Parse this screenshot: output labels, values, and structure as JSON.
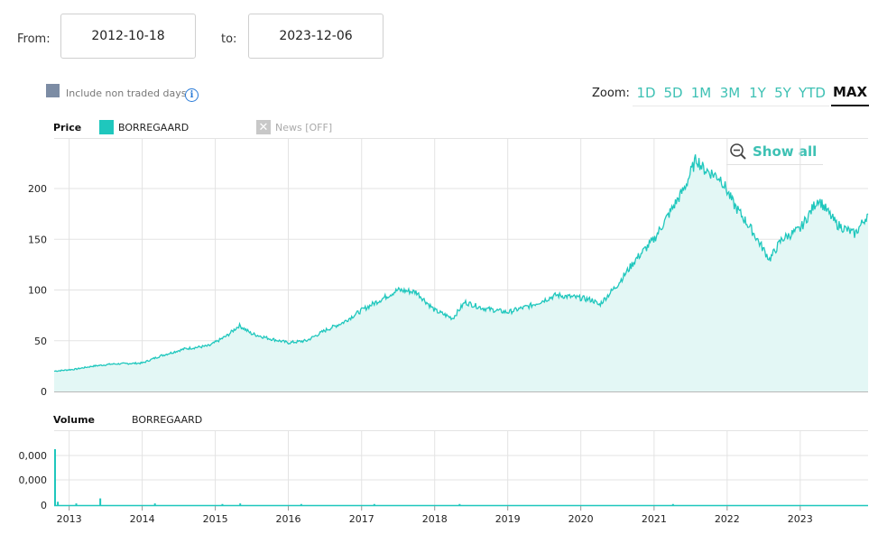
{
  "range": {
    "from_label": "From:",
    "from_value": "2012-10-18",
    "to_label": "to:",
    "to_value": "2023-12-06"
  },
  "options": {
    "include_non_traded_days": "Include non traded days"
  },
  "zoom": {
    "label": "Zoom:",
    "buttons": [
      "1D",
      "5D",
      "1M",
      "3M",
      "1Y",
      "5Y",
      "YTD",
      "MAX"
    ],
    "active": "MAX"
  },
  "price_legend": {
    "title": "Price",
    "series_name": "BORREGAARD",
    "news_label": "News [OFF]"
  },
  "show_all": "Show all",
  "volume_legend": {
    "title": "Volume",
    "series_name": "BORREGAARD"
  },
  "colors": {
    "series": "#1fc7bd",
    "fill": "#e3f7f5",
    "accent": "#3ec1b4",
    "grid": "#e3e3e3"
  },
  "icons": {
    "info": "info-icon",
    "zoom_out": "zoom-out-icon",
    "news_off": "close-icon"
  },
  "chart_data": [
    {
      "type": "area",
      "series": [
        {
          "name": "BORREGAARD",
          "x": [
            "2012-10-18",
            "2013-02",
            "2013-05",
            "2013-08",
            "2014-01",
            "2014-04",
            "2014-08",
            "2014-12",
            "2015-03",
            "2015-05",
            "2015-07",
            "2015-10",
            "2016-01",
            "2016-04",
            "2016-07",
            "2016-10",
            "2017-01",
            "2017-04",
            "2017-07",
            "2017-10",
            "2018-01",
            "2018-04",
            "2018-06",
            "2018-09",
            "2019-01",
            "2019-05",
            "2019-09",
            "2020-01",
            "2020-03",
            "2020-04",
            "2020-07",
            "2020-10",
            "2021-01",
            "2021-04",
            "2021-06",
            "2021-08",
            "2021-09",
            "2021-12",
            "2022-02",
            "2022-05",
            "2022-08",
            "2022-10",
            "2023-01",
            "2023-04",
            "2023-07",
            "2023-10",
            "2023-12-06"
          ],
          "values": [
            20,
            22,
            25,
            27,
            28,
            35,
            42,
            45,
            55,
            65,
            57,
            52,
            48,
            50,
            60,
            68,
            80,
            90,
            100,
            98,
            80,
            72,
            88,
            82,
            78,
            85,
            95,
            92,
            90,
            85,
            105,
            130,
            150,
            180,
            200,
            230,
            220,
            210,
            185,
            160,
            130,
            150,
            160,
            190,
            165,
            155,
            175
          ]
        }
      ],
      "yticks": [
        0,
        50,
        100,
        150,
        200
      ],
      "ylim": [
        0,
        240
      ],
      "xticks": [
        "2013",
        "2014",
        "2015",
        "2016",
        "2017",
        "2018",
        "2019",
        "2020",
        "2021",
        "2022",
        "2023"
      ],
      "grid": true
    },
    {
      "type": "bar",
      "series": [
        {
          "name": "BORREGAARD",
          "x": [
            "2012-10-18",
            "2012-11",
            "2013-02",
            "2013-06",
            "2014-03",
            "2015-02",
            "2015-05",
            "2016-03",
            "2017-03",
            "2018-05",
            "2021-04"
          ],
          "values": [
            100,
            6,
            3,
            12,
            3,
            2,
            3,
            2,
            2,
            2,
            2
          ]
        }
      ],
      "yticks": [
        "0",
        "0,000",
        "0,000"
      ],
      "grid": true
    }
  ]
}
